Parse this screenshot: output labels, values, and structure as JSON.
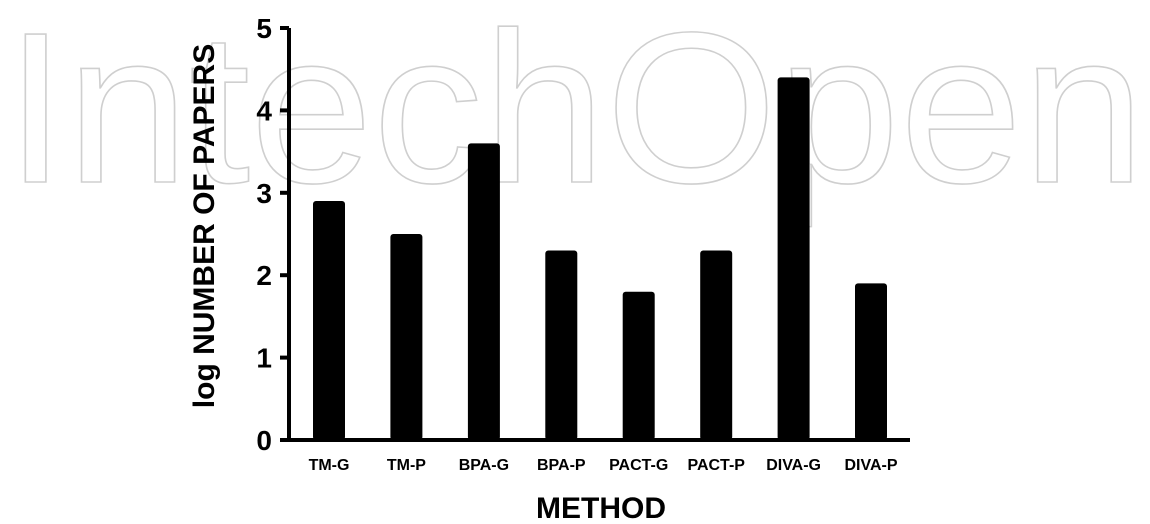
{
  "watermark": {
    "text": "IntechOpen",
    "color": "#cfcfcf"
  },
  "chart_data": {
    "type": "bar",
    "categories": [
      "TM-G",
      "TM-P",
      "BPA-G",
      "BPA-P",
      "PACT-G",
      "PACT-P",
      "DIVA-G",
      "DIVA-P"
    ],
    "values": [
      2.9,
      2.5,
      3.6,
      2.3,
      1.8,
      2.3,
      4.4,
      1.9
    ],
    "title": "",
    "xlabel": "METHOD",
    "ylabel": "log NUMBER OF PAPERS",
    "ylim": [
      0,
      5
    ],
    "yticks": [
      "0",
      "1",
      "2",
      "3",
      "4",
      "5"
    ],
    "grid": false,
    "legend": "none",
    "bar_color": "#000000"
  }
}
